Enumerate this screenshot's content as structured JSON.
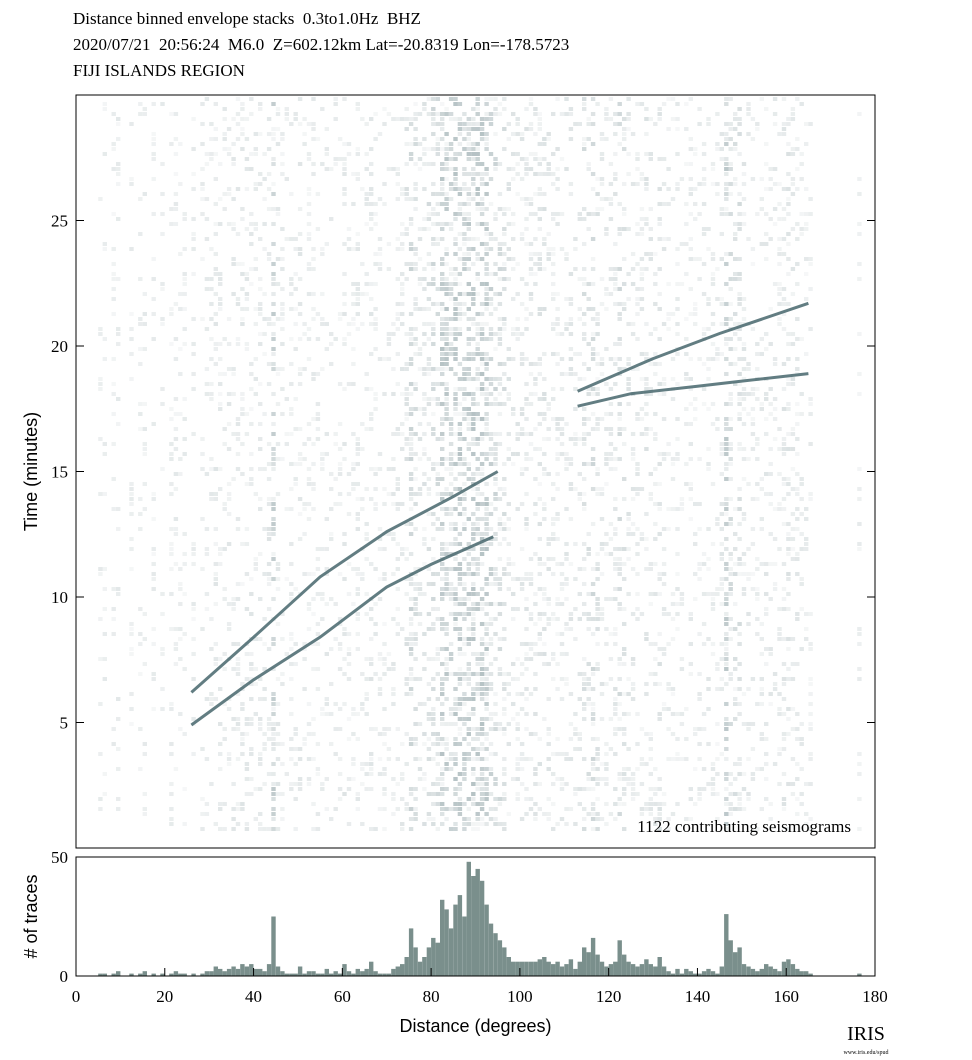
{
  "header": {
    "line1": "Distance binned envelope stacks  0.3to1.0Hz  BHZ",
    "line2": "2020/07/21  20:56:24  M6.0  Z=602.12km Lat=-20.8319 Lon=-178.5723",
    "line3": "FIJI ISLANDS REGION"
  },
  "colors": {
    "envelope": "#46666c",
    "histogram": "#7a8f8c",
    "frame": "#000000"
  },
  "chart_data": [
    {
      "type": "heatmap",
      "title": "",
      "xlabel": "",
      "ylabel": "Time (minutes)",
      "xlim": [
        0,
        180
      ],
      "ylim": [
        0,
        30
      ],
      "yticks": [
        5,
        10,
        15,
        20,
        25
      ],
      "ytick_labels": [
        "5",
        "10",
        "15",
        "20",
        "25"
      ],
      "annotation": "1122 contributing seismograms",
      "phase_curves": [
        {
          "x": [
            26,
            40,
            55,
            70,
            80,
            94
          ],
          "y": [
            4.9,
            6.7,
            8.4,
            10.4,
            11.3,
            12.4
          ]
        },
        {
          "x": [
            26,
            40,
            55,
            70,
            85,
            95
          ],
          "y": [
            6.2,
            8.4,
            10.8,
            12.6,
            14.0,
            15.0
          ]
        },
        {
          "x": [
            113,
            125,
            140,
            150,
            165
          ],
          "y": [
            17.6,
            18.1,
            18.4,
            18.6,
            18.9
          ]
        },
        {
          "x": [
            113,
            130,
            145,
            165
          ],
          "y": [
            18.2,
            19.5,
            20.5,
            21.7
          ]
        }
      ],
      "column_starts": [
        {
          "x": 5,
          "y": 1.6
        },
        {
          "x": 8,
          "y": 3.8
        },
        {
          "x": 12,
          "y": 2.8
        },
        {
          "x": 14,
          "y": 3.0
        },
        {
          "x": 17,
          "y": 3.5
        },
        {
          "x": 23,
          "y": 4.5
        },
        {
          "x": 136,
          "y": 3.0
        },
        {
          "x": 145,
          "y": 3.6
        }
      ]
    },
    {
      "type": "bar",
      "title": "",
      "xlabel": "Distance (degrees)",
      "ylabel": "# of traces",
      "xlim": [
        0,
        180
      ],
      "ylim": [
        0,
        50
      ],
      "xticks": [
        0,
        20,
        40,
        60,
        80,
        100,
        120,
        140,
        160,
        180
      ],
      "xtick_labels": [
        "0",
        "20",
        "40",
        "60",
        "80",
        "100",
        "120",
        "140",
        "160",
        "180"
      ],
      "yticks": [
        0,
        50
      ],
      "ytick_labels": [
        "0",
        "50"
      ],
      "bin_width": 1,
      "x": [
        5,
        6,
        8,
        9,
        12,
        14,
        15,
        17,
        19,
        21,
        22,
        23,
        24,
        26,
        28,
        29,
        30,
        31,
        32,
        33,
        34,
        35,
        36,
        37,
        38,
        39,
        40,
        41,
        42,
        43,
        44,
        45,
        46,
        47,
        48,
        49,
        50,
        51,
        52,
        53,
        54,
        55,
        56,
        57,
        58,
        59,
        60,
        61,
        62,
        63,
        64,
        65,
        66,
        67,
        68,
        69,
        70,
        71,
        72,
        73,
        74,
        75,
        76,
        77,
        78,
        79,
        80,
        81,
        82,
        83,
        84,
        85,
        86,
        87,
        88,
        89,
        90,
        91,
        92,
        93,
        94,
        95,
        96,
        97,
        98,
        99,
        100,
        101,
        102,
        103,
        104,
        105,
        106,
        107,
        108,
        109,
        110,
        111,
        112,
        113,
        114,
        115,
        116,
        117,
        118,
        119,
        120,
        121,
        122,
        123,
        124,
        125,
        126,
        127,
        128,
        129,
        130,
        131,
        132,
        133,
        134,
        135,
        136,
        137,
        138,
        139,
        140,
        141,
        142,
        143,
        144,
        145,
        146,
        147,
        148,
        149,
        150,
        151,
        152,
        153,
        154,
        155,
        156,
        157,
        158,
        159,
        160,
        161,
        162,
        163,
        164,
        165,
        176
      ],
      "values": [
        1,
        1,
        1,
        2,
        1,
        1,
        2,
        1,
        1,
        1,
        2,
        1,
        1,
        1,
        1,
        2,
        2,
        4,
        3,
        2,
        3,
        4,
        3,
        5,
        4,
        5,
        3,
        3,
        2,
        5,
        25,
        4,
        2,
        1,
        1,
        1,
        4,
        1,
        2,
        2,
        1,
        1,
        3,
        1,
        2,
        1,
        5,
        2,
        1,
        3,
        2,
        3,
        6,
        2,
        1,
        1,
        1,
        3,
        4,
        5,
        8,
        20,
        12,
        6,
        8,
        12,
        16,
        14,
        32,
        28,
        20,
        30,
        34,
        25,
        48,
        42,
        45,
        40,
        30,
        22,
        18,
        15,
        12,
        8,
        6,
        6,
        6,
        6,
        6,
        6,
        7,
        8,
        6,
        5,
        6,
        4,
        5,
        7,
        3,
        6,
        12,
        10,
        16,
        9,
        6,
        4,
        5,
        6,
        15,
        9,
        6,
        5,
        4,
        5,
        7,
        5,
        4,
        8,
        4,
        2,
        1,
        3,
        1,
        3,
        2,
        1,
        1,
        2,
        3,
        2,
        1,
        4,
        26,
        15,
        10,
        12,
        5,
        4,
        3,
        2,
        3,
        5,
        4,
        3,
        2,
        6,
        7,
        5,
        3,
        2,
        2,
        1,
        1
      ]
    }
  ],
  "logo": {
    "text": "IRIS",
    "url_text": "www.iris.edu/spud"
  }
}
